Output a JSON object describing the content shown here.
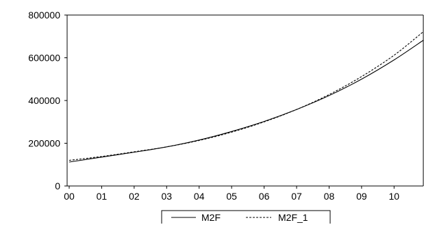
{
  "chart_data": {
    "type": "line",
    "title": "",
    "xlabel": "",
    "ylabel": "",
    "x_ticks": [
      "00",
      "01",
      "02",
      "03",
      "04",
      "05",
      "06",
      "07",
      "08",
      "09",
      "10"
    ],
    "y_ticks": [
      "0",
      "200000",
      "400000",
      "600000",
      "800000"
    ],
    "xlim": [
      0,
      10.9
    ],
    "ylim": [
      0,
      800000
    ],
    "grid": false,
    "legend_position": "bottom-center",
    "series": [
      {
        "name": "M2F",
        "style": "solid",
        "x": [
          0,
          1,
          2,
          3,
          4,
          5,
          6,
          7,
          8,
          9,
          10,
          10.9
        ],
        "values": [
          112000,
          135000,
          158000,
          183000,
          215000,
          255000,
          302000,
          358000,
          423000,
          500000,
          590000,
          682000
        ]
      },
      {
        "name": "M2F_1",
        "style": "dashed",
        "x": [
          0,
          1,
          2,
          3,
          4,
          5,
          6,
          7,
          8,
          9,
          10,
          10.9
        ],
        "values": [
          120000,
          138000,
          160000,
          183000,
          213000,
          252000,
          300000,
          358000,
          428000,
          512000,
          612000,
          722000
        ]
      }
    ]
  }
}
